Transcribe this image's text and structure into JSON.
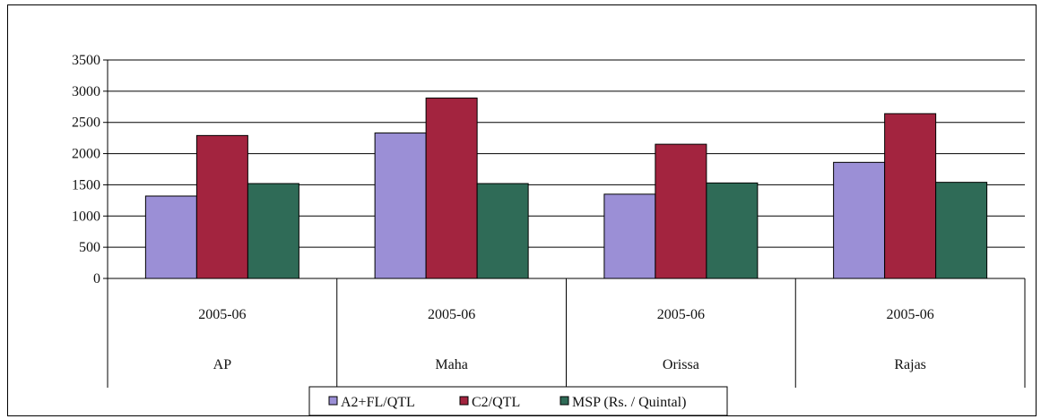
{
  "chart_data": {
    "type": "bar",
    "categories": [
      {
        "period": "2005-06",
        "state": "AP"
      },
      {
        "period": "2005-06",
        "state": "Maha"
      },
      {
        "period": "2005-06",
        "state": "Orissa"
      },
      {
        "period": "2005-06",
        "state": "Rajas"
      }
    ],
    "series": [
      {
        "name": "A2+FL/QTL",
        "color": "#9b8fd6",
        "values": [
          1320,
          2330,
          1350,
          1860
        ]
      },
      {
        "name": "C2/QTL",
        "color": "#a3243f",
        "values": [
          2290,
          2890,
          2150,
          2640
        ]
      },
      {
        "name": "MSP (Rs. / Quintal)",
        "color": "#2f6b57",
        "values": [
          1520,
          1520,
          1530,
          1540
        ]
      }
    ],
    "ylim": [
      0,
      3500
    ],
    "yticks": [
      0,
      500,
      1000,
      1500,
      2000,
      2500,
      3000,
      3500
    ],
    "grid": true,
    "legend_position": "bottom"
  }
}
